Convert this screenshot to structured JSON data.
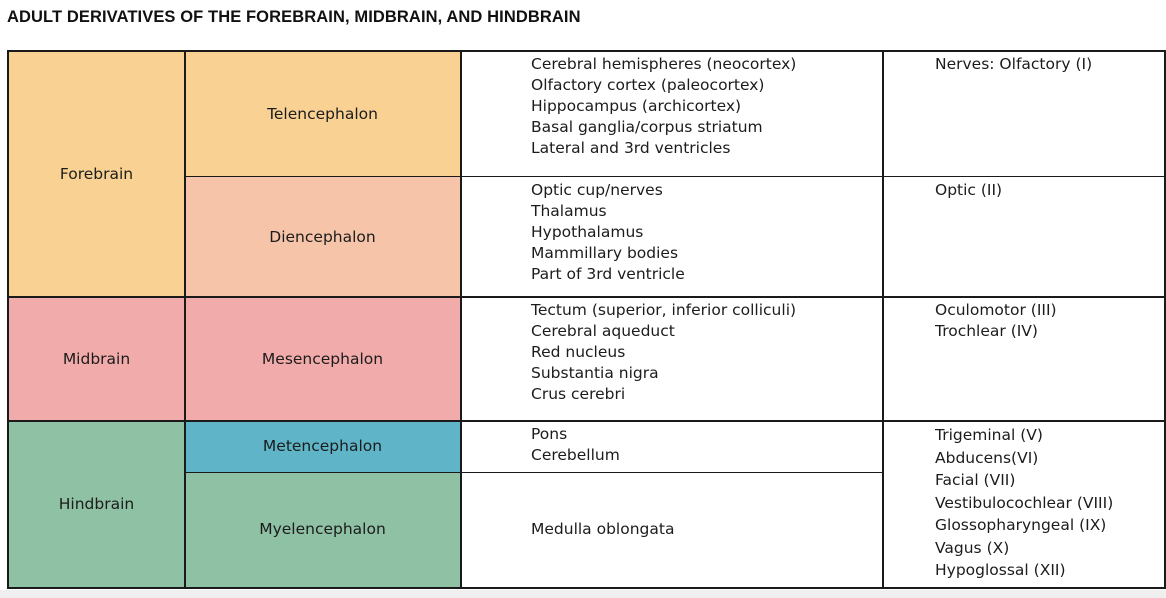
{
  "title": "ADULT DERIVATIVES OF THE FOREBRAIN, MIDBRAIN, AND HINDBRAIN",
  "colors": {
    "forebrain": "#f9d293",
    "telencephalon": "#f9d293",
    "diencephalon": "#f6c5a9",
    "midbrain": "#f1abaa",
    "metencephalon": "#5fb5c7",
    "hindbrain": "#8fc1a4"
  },
  "regions": {
    "forebrain": "Forebrain",
    "midbrain": "Midbrain",
    "hindbrain": "Hindbrain"
  },
  "vesicles": {
    "telencephalon": "Telencephalon",
    "diencephalon": "Diencephalon",
    "mesencephalon": "Mesencephalon",
    "metencephalon": "Metencephalon",
    "myelencephalon": "Myelencephalon"
  },
  "derivatives": {
    "telencephalon": [
      "Cerebral hemispheres (neocortex)",
      "Olfactory cortex (paleocortex)",
      "Hippocampus (archicortex)",
      "Basal ganglia/corpus striatum",
      "Lateral and 3rd ventricles"
    ],
    "diencephalon": [
      "Optic cup/nerves",
      "Thalamus",
      "Hypothalamus",
      "Mammillary bodies",
      "Part of 3rd ventricle"
    ],
    "mesencephalon": [
      "Tectum (superior, inferior colliculi)",
      "Cerebral aqueduct",
      "Red nucleus",
      "Substantia nigra",
      "Crus cerebri"
    ],
    "metencephalon": [
      "Pons",
      "Cerebellum"
    ],
    "myelencephalon": [
      "Medulla oblongata"
    ]
  },
  "nerves": {
    "telencephalon": [
      "Nerves: Olfactory (I)"
    ],
    "diencephalon": [
      "Optic (II)"
    ],
    "mesencephalon": [
      "Oculomotor (III)",
      "Trochlear (IV)"
    ],
    "hindbrain": [
      "Trigeminal (V)",
      "Abducens(VI)",
      "Facial (VII)",
      "Vestibulocochlear (VIII)",
      "Glossopharyngeal (IX)",
      "Vagus (X)",
      "Hypoglossal (XII)"
    ]
  }
}
